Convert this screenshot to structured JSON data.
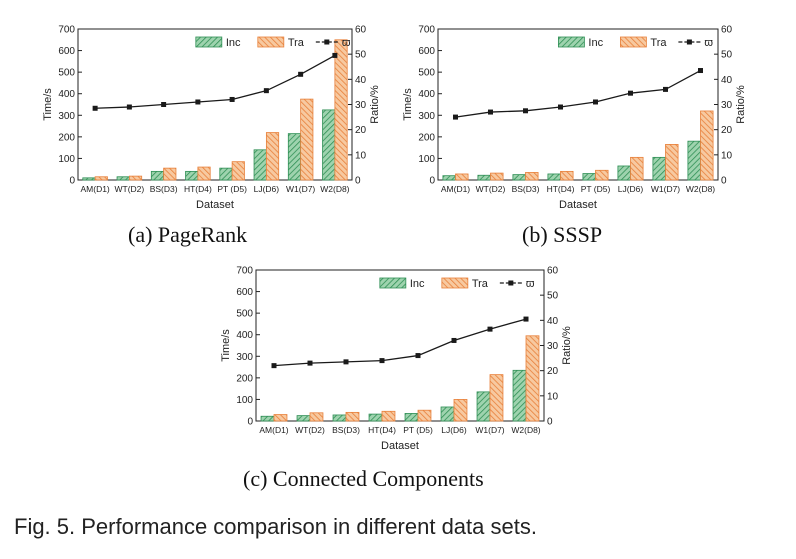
{
  "colors": {
    "inc": "#2f8f55",
    "inc_fill": "#9ed3ae",
    "tra": "#e8803a",
    "tra_fill": "#f7c9a0",
    "line": "#1a1a1a",
    "axis": "#222222"
  },
  "chart_data": [
    {
      "type": "bar",
      "caption": "(a) PageRank",
      "categories": [
        "AM(D1)",
        "WT(D2)",
        "BS(D3)",
        "HT(D4)",
        "PT (D5)",
        "LJ(D6)",
        "W1(D7)",
        "W2(D8)"
      ],
      "series": [
        {
          "name": "Inc",
          "axis": "left",
          "values": [
            10,
            15,
            40,
            40,
            55,
            140,
            215,
            325
          ]
        },
        {
          "name": "Tra",
          "axis": "left",
          "values": [
            15,
            18,
            55,
            60,
            85,
            220,
            375,
            650
          ]
        },
        {
          "name": "ϖ",
          "type": "line",
          "axis": "right",
          "values": [
            28.5,
            29,
            30,
            31,
            32,
            35.5,
            42,
            49.5
          ]
        }
      ],
      "xlabel": "Dataset",
      "ylabel": "Time/s",
      "y2label": "Ratio/%",
      "ylim": [
        0,
        700
      ],
      "yticks": [
        0,
        100,
        200,
        300,
        400,
        500,
        600,
        700
      ],
      "y2lim": [
        0,
        60
      ],
      "y2ticks": [
        0,
        10,
        20,
        30,
        40,
        50,
        60
      ],
      "legend": "top-right"
    },
    {
      "type": "bar",
      "caption": "(b) SSSP",
      "categories": [
        "AM(D1)",
        "WT(D2)",
        "BS(D3)",
        "HT(D4)",
        "PT (D5)",
        "LJ(D6)",
        "W1(D7)",
        "W2(D8)"
      ],
      "series": [
        {
          "name": "Inc",
          "axis": "left",
          "values": [
            20,
            22,
            25,
            28,
            30,
            65,
            105,
            180
          ]
        },
        {
          "name": "Tra",
          "axis": "left",
          "values": [
            28,
            32,
            35,
            40,
            45,
            105,
            165,
            320
          ]
        },
        {
          "name": "ϖ",
          "type": "line",
          "axis": "right",
          "values": [
            25,
            27,
            27.5,
            29,
            31,
            34.5,
            36,
            43.5
          ]
        }
      ],
      "xlabel": "Dataset",
      "ylabel": "Time/s",
      "y2label": "Ratio/%",
      "ylim": [
        0,
        700
      ],
      "yticks": [
        0,
        100,
        200,
        300,
        400,
        500,
        600,
        700
      ],
      "y2lim": [
        0,
        60
      ],
      "y2ticks": [
        0,
        10,
        20,
        30,
        40,
        50,
        60
      ],
      "legend": "top-right"
    },
    {
      "type": "bar",
      "caption": "(c) Connected Components",
      "categories": [
        "AM(D1)",
        "WT(D2)",
        "BS(D3)",
        "HT(D4)",
        "PT (D5)",
        "LJ(D6)",
        "W1(D7)",
        "W2(D8)"
      ],
      "series": [
        {
          "name": "Inc",
          "axis": "left",
          "values": [
            22,
            25,
            28,
            32,
            35,
            65,
            135,
            235
          ]
        },
        {
          "name": "Tra",
          "axis": "left",
          "values": [
            30,
            38,
            40,
            45,
            50,
            100,
            215,
            395
          ]
        },
        {
          "name": "ϖ",
          "type": "line",
          "axis": "right",
          "values": [
            22,
            23,
            23.5,
            24,
            26,
            32,
            36.5,
            40.5
          ]
        }
      ],
      "xlabel": "Dataset",
      "ylabel": "Time/s",
      "y2label": "Ratio/%",
      "ylim": [
        0,
        700
      ],
      "yticks": [
        0,
        100,
        200,
        300,
        400,
        500,
        600,
        700
      ],
      "y2lim": [
        0,
        60
      ],
      "y2ticks": [
        0,
        10,
        20,
        30,
        40,
        50,
        60
      ],
      "legend": "top-right"
    }
  ],
  "figure_caption": "Fig. 5. Performance comparison in different data sets."
}
